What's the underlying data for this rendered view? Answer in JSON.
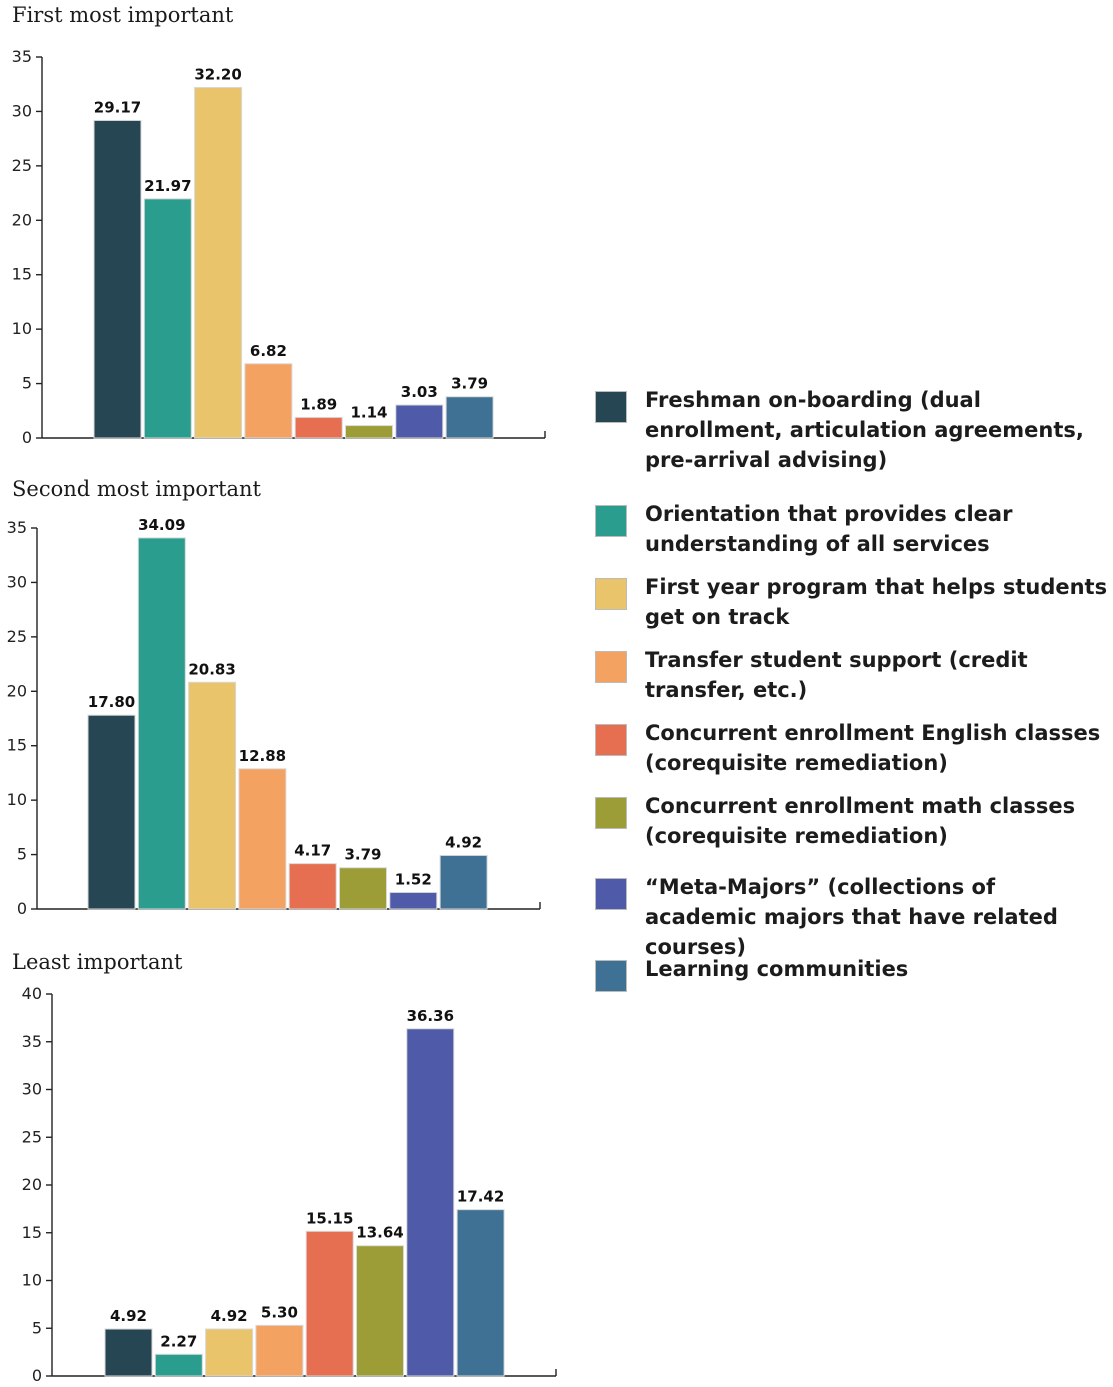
{
  "chart_data": [
    {
      "type": "bar",
      "title": "First most important",
      "categories": [
        "Freshman on-boarding (dual enrollment, articulation agreements, pre-arrival advising)",
        "Orientation that provides clear understanding of all services",
        "First year program that helps students get on track",
        "Transfer student support (credit transfer, etc.)",
        "Concurrent enrollment English classes (corequisite remediation)",
        "Concurrent enrollment math classes (corequisite remediation)",
        "“Meta-Majors” (collections of academic majors that have related courses)",
        "Learning communities"
      ],
      "values": [
        29.17,
        21.97,
        32.2,
        6.82,
        1.89,
        1.14,
        3.03,
        3.79
      ],
      "labels": [
        "29.17",
        "21.97",
        "32.20",
        "6.82",
        "1.89",
        "1.14",
        "3.03",
        "3.79"
      ],
      "ylim": [
        0,
        35
      ],
      "yticks": [
        "0",
        "5",
        "10",
        "15",
        "20",
        "25",
        "30",
        "35"
      ],
      "grid": false
    },
    {
      "type": "bar",
      "title": "Second most important",
      "categories": [
        "Freshman on-boarding (dual enrollment, articulation agreements, pre-arrival advising)",
        "Orientation that provides clear understanding of all services",
        "First year program that helps students get on track",
        "Transfer student support (credit transfer, etc.)",
        "Concurrent enrollment English classes (corequisite remediation)",
        "Concurrent enrollment math classes (corequisite remediation)",
        "“Meta-Majors” (collections of academic majors that have related courses)",
        "Learning communities"
      ],
      "values": [
        17.8,
        34.09,
        20.83,
        12.88,
        4.17,
        3.79,
        1.52,
        4.92
      ],
      "labels": [
        "17.80",
        "34.09",
        "20.83",
        "12.88",
        "4.17",
        "3.79",
        "1.52",
        "4.92"
      ],
      "ylim": [
        0,
        35
      ],
      "yticks": [
        "0",
        "5",
        "10",
        "15",
        "20",
        "25",
        "30",
        "35"
      ],
      "grid": false
    },
    {
      "type": "bar",
      "title": "Least important",
      "categories": [
        "Freshman on-boarding (dual enrollment, articulation agreements, pre-arrival advising)",
        "Orientation that provides clear understanding of all services",
        "First year program that helps students get on track",
        "Transfer student support (credit transfer, etc.)",
        "Concurrent enrollment English classes (corequisite remediation)",
        "Concurrent enrollment math classes (corequisite remediation)",
        "“Meta-Majors” (collections of academic majors that have related courses)",
        "Learning communities"
      ],
      "values": [
        4.92,
        2.27,
        4.92,
        5.3,
        15.15,
        13.64,
        36.36,
        17.42
      ],
      "labels": [
        "4.92",
        "2.27",
        "4.92",
        "5.30",
        "15.15",
        "13.64",
        "36.36",
        "17.42"
      ],
      "ylim": [
        0,
        40
      ],
      "yticks": [
        "0",
        "5",
        "10",
        "15",
        "20",
        "25",
        "30",
        "35",
        "40"
      ],
      "grid": false
    }
  ],
  "colors": [
    "#264653",
    "#2a9d8f",
    "#e9c46a",
    "#f4a261",
    "#e76f51",
    "#9c9d36",
    "#4f5aa8",
    "#3f7194"
  ],
  "legend": {
    "placement": "right",
    "items": [
      {
        "label": "Freshman on-boarding (dual enrollment, articulation agreements, pre-arrival advising)",
        "color": "#264653"
      },
      {
        "label": "Orientation that provides clear understanding of all services",
        "color": "#2a9d8f"
      },
      {
        "label": "First year program that helps students get on track",
        "color": "#e9c46a"
      },
      {
        "label": "Transfer student support (credit transfer, etc.)",
        "color": "#f4a261"
      },
      {
        "label": "Concurrent enrollment English classes (corequisite remediation)",
        "color": "#e76f51"
      },
      {
        "label": "Concurrent enrollment math classes (corequisite remediation)",
        "color": "#9c9d36"
      },
      {
        "label": "“Meta-Majors” (collections of academic majors that have related courses)",
        "color": "#4f5aa8"
      },
      {
        "label": "Learning communities",
        "color": "#3f7194"
      }
    ]
  }
}
